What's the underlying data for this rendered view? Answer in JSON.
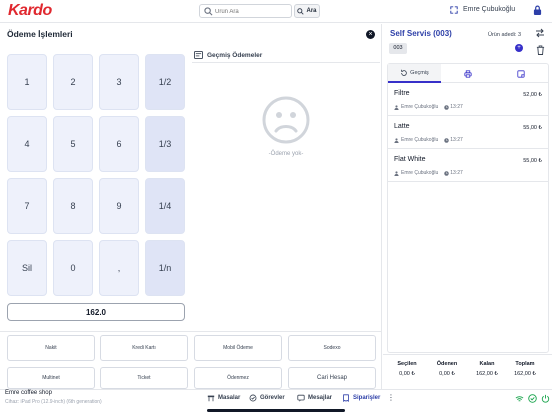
{
  "header": {
    "logo": "Kardo",
    "search_placeholder": "Ürün Ara",
    "search_button": "Ara",
    "user": "Emre Çubukoğlu"
  },
  "payment": {
    "title": "Ödeme İşlemleri",
    "keypad": [
      "1",
      "2",
      "3",
      "1/2",
      "4",
      "5",
      "6",
      "1/3",
      "7",
      "8",
      "9",
      "1/4",
      "Sil",
      "0",
      ",",
      "1/n"
    ],
    "amount": "162.0",
    "history_title": "Geçmiş Ödemeler",
    "empty_text": "-Ödeme yok-",
    "methods": [
      "Nakit",
      "Kredi Kartı",
      "Mobil Ödeme",
      "Sodexo",
      "Multinet",
      "Ticket",
      "Ödenmez",
      "Cari Hesap"
    ]
  },
  "order": {
    "title": "Self Servis (003)",
    "count_label": "Ürün adedi: 3",
    "table_tag": "003",
    "tabs": [
      {
        "label": "Geçmiş",
        "icon": "history-icon"
      },
      {
        "label": "",
        "icon": "printer-icon"
      },
      {
        "label": "",
        "icon": "note-icon"
      }
    ],
    "items": [
      {
        "name": "Filtre",
        "price": "52,00 ₺",
        "user": "Emre Çubukoğlu",
        "time": "13:27"
      },
      {
        "name": "Latte",
        "price": "55,00 ₺",
        "user": "Emre Çubukoğlu",
        "time": "13:27"
      },
      {
        "name": "Flat White",
        "price": "55,00 ₺",
        "user": "Emre Çubukoğlu",
        "time": "13:27"
      }
    ],
    "summary": [
      {
        "label": "Seçilen",
        "value": "0,00 ₺"
      },
      {
        "label": "Ödenen",
        "value": "0,00 ₺"
      },
      {
        "label": "Kalan",
        "value": "162,00 ₺"
      },
      {
        "label": "Toplam",
        "value": "162,00 ₺"
      }
    ]
  },
  "footer": {
    "shop": "Emre coffee shop",
    "device": "Cihaz: iPad Pro (12.9-inch) (6th generation)",
    "nav": [
      {
        "label": "Masalar",
        "icon": "table-icon"
      },
      {
        "label": "Görevler",
        "icon": "tasks-icon"
      },
      {
        "label": "Mesajlar",
        "icon": "messages-icon"
      },
      {
        "label": "Siparişler",
        "icon": "orders-icon"
      }
    ],
    "more": "⋮"
  },
  "colors": {
    "brand": "#e0282f",
    "accent": "#2d3fa8",
    "keypad": "#eef1fb"
  }
}
